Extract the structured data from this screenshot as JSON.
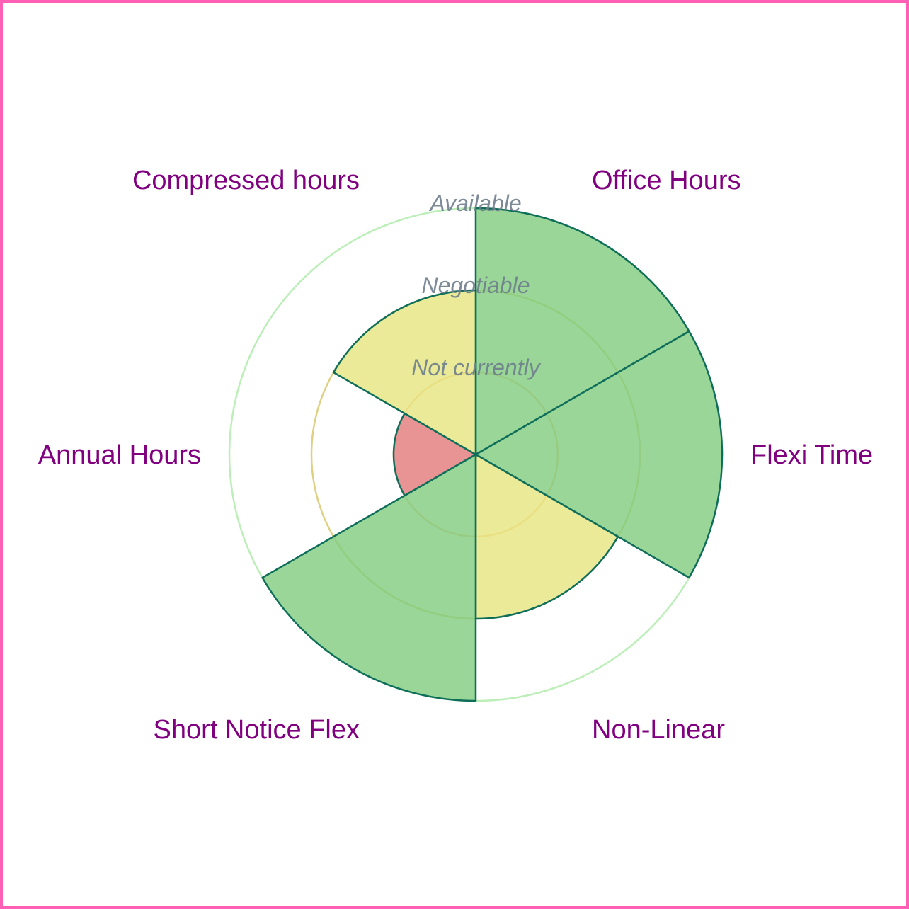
{
  "chart_data": {
    "type": "polar-area",
    "title": "",
    "levels": [
      "Not currently",
      "Negotiable",
      "Available"
    ],
    "level_ring_colors": [
      "#f5b26b",
      "#d4c25a",
      "#a6e8a0"
    ],
    "level_fill_colors": [
      "#e27979",
      "#e5e57e",
      "#80cc7e"
    ],
    "stroke_color": "#0f6e5a",
    "label_color": "#800080",
    "categories": [
      "Office Hours",
      "Flexi Time",
      "Non-Linear",
      "Short Notice Flex",
      "Annual Hours",
      "Compressed hours"
    ],
    "values": [
      3,
      3,
      2,
      3,
      1,
      2
    ],
    "value_labels": [
      "Available",
      "Available",
      "Negotiable",
      "Available",
      "Not currently",
      "Negotiable"
    ]
  }
}
